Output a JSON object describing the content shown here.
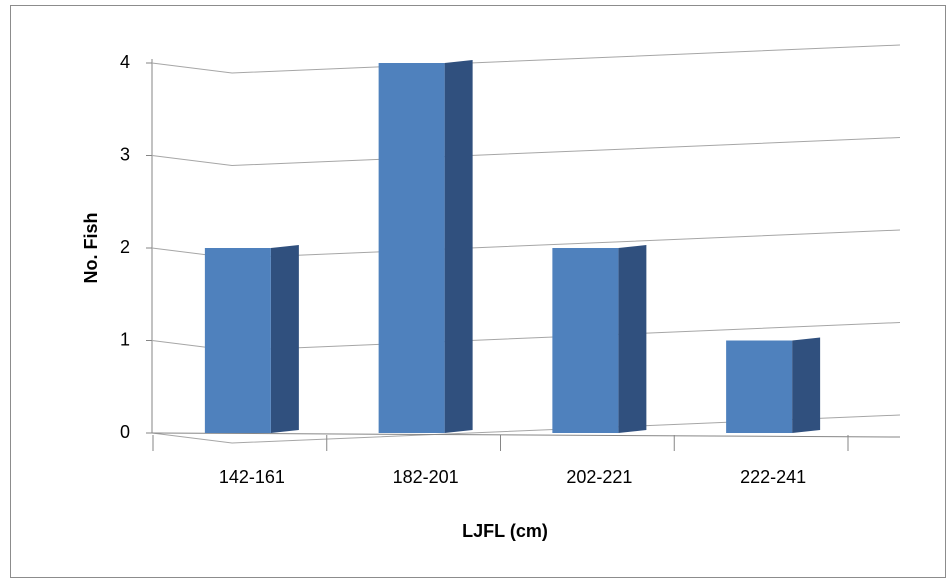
{
  "chart_data": {
    "type": "bar",
    "x_label": "LJFL (cm)",
    "y_label": "No. Fish",
    "categories": [
      "142-161",
      "182-201",
      "202-221",
      "222-241"
    ],
    "values": [
      2,
      4,
      2,
      1
    ],
    "color": "#4f81bd",
    "side_color": "#30507e",
    "ylim": [
      0,
      4
    ],
    "yticks": [
      0,
      1,
      2,
      3,
      4
    ],
    "grid": true
  }
}
